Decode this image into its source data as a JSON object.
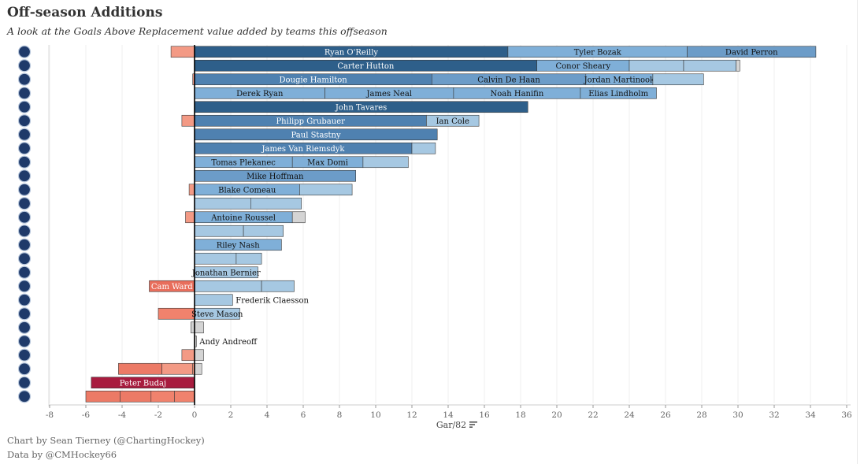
{
  "title": "Off-season Additions",
  "subtitle": "A look at the Goals Above Replacement value added by teams this offseason",
  "footer": {
    "credit": "Chart by Sean Tierney (@ChartingHockey)",
    "source": "Data by @CMHockey66"
  },
  "chart_data": {
    "type": "bar",
    "orientation": "horizontal-stacked",
    "xlabel": "Gar/82",
    "xlim": [
      -8,
      36
    ],
    "xticks": [
      -8,
      -6,
      -4,
      -2,
      0,
      2,
      4,
      6,
      8,
      10,
      12,
      14,
      16,
      18,
      20,
      22,
      24,
      26,
      28,
      30,
      32,
      34,
      36
    ],
    "grid": true,
    "colors": {
      "dark_blue": "#2e5f8a",
      "mid_blue": "#4f81b0",
      "light_blue": "#7fafd8",
      "pale_blue": "#a6c8e2",
      "gray": "#d4d4d4",
      "salmon": "#f39a85",
      "coral": "#e86e5c",
      "crimson": "#a81c3f"
    },
    "teams": [
      {
        "logo_icon": "st-louis-blues-logo-icon",
        "segments": [
          {
            "from": -1.3,
            "to": 0,
            "color": "#f39a85",
            "label": ""
          },
          {
            "from": 0,
            "to": 17.3,
            "color": "#2e5f8a",
            "label": "Ryan O'Reilly"
          },
          {
            "from": 17.3,
            "to": 27.2,
            "color": "#7fafd8",
            "label": "Tyler Bozak"
          },
          {
            "from": 27.2,
            "to": 34.3,
            "color": "#6c9cc8",
            "label": "David Perron"
          }
        ]
      },
      {
        "logo_icon": "buffalo-sabres-logo-icon",
        "segments": [
          {
            "from": 0,
            "to": 18.9,
            "color": "#2e5f8a",
            "label": "Carter Hutton"
          },
          {
            "from": 18.9,
            "to": 24.0,
            "color": "#7fafd8",
            "label": "Conor Sheary"
          },
          {
            "from": 24.0,
            "to": 27.0,
            "color": "#a6c8e2",
            "label": ""
          },
          {
            "from": 27.0,
            "to": 29.9,
            "color": "#a6c8e2",
            "label": ""
          },
          {
            "from": 29.9,
            "to": 30.1,
            "color": "#d4d4d4",
            "label": ""
          }
        ]
      },
      {
        "logo_icon": "carolina-hurricanes-logo-icon",
        "segments": [
          {
            "from": -0.1,
            "to": 0,
            "color": "#f39a85",
            "label": ""
          },
          {
            "from": 0,
            "to": 13.1,
            "color": "#4f81b0",
            "label": "Dougie Hamilton"
          },
          {
            "from": 13.1,
            "to": 21.6,
            "color": "#6c9cc8",
            "label": "Calvin De Haan"
          },
          {
            "from": 21.6,
            "to": 25.3,
            "color": "#7fafd8",
            "label": "Jordan Martinook"
          },
          {
            "from": 25.3,
            "to": 28.1,
            "color": "#a6c8e2",
            "label": ""
          }
        ]
      },
      {
        "logo_icon": "calgary-flames-logo-icon",
        "segments": [
          {
            "from": 0,
            "to": 7.2,
            "color": "#7fafd8",
            "label": "Derek Ryan"
          },
          {
            "from": 7.2,
            "to": 14.3,
            "color": "#7fafd8",
            "label": "James Neal"
          },
          {
            "from": 14.3,
            "to": 21.3,
            "color": "#7fafd8",
            "label": "Noah Hanifin"
          },
          {
            "from": 21.3,
            "to": 25.5,
            "color": "#7fafd8",
            "label": "Elias Lindholm"
          }
        ]
      },
      {
        "logo_icon": "toronto-maple-leafs-logo-icon",
        "segments": [
          {
            "from": 0,
            "to": 18.4,
            "color": "#2e5f8a",
            "label": "John Tavares"
          }
        ]
      },
      {
        "logo_icon": "colorado-avalanche-logo-icon",
        "segments": [
          {
            "from": -0.7,
            "to": 0,
            "color": "#f39a85",
            "label": ""
          },
          {
            "from": 0,
            "to": 12.8,
            "color": "#4f81b0",
            "label": "Philipp Grubauer"
          },
          {
            "from": 12.8,
            "to": 15.7,
            "color": "#a6c8e2",
            "label": "Ian Cole"
          }
        ]
      },
      {
        "logo_icon": "vegas-golden-knights-logo-icon",
        "segments": [
          {
            "from": 0,
            "to": 13.4,
            "color": "#4f81b0",
            "label": "Paul Stastny"
          }
        ]
      },
      {
        "logo_icon": "philadelphia-flyers-logo-icon",
        "segments": [
          {
            "from": 0,
            "to": 12.0,
            "color": "#4f81b0",
            "label": "James Van Riemsdyk"
          },
          {
            "from": 12.0,
            "to": 13.3,
            "color": "#a6c8e2",
            "label": ""
          }
        ]
      },
      {
        "logo_icon": "montreal-canadiens-logo-icon",
        "segments": [
          {
            "from": 0,
            "to": 5.4,
            "color": "#7fafd8",
            "label": "Tomas Plekanec"
          },
          {
            "from": 5.4,
            "to": 9.3,
            "color": "#7fafd8",
            "label": "Max Domi"
          },
          {
            "from": 9.3,
            "to": 11.8,
            "color": "#a6c8e2",
            "label": ""
          }
        ]
      },
      {
        "logo_icon": "florida-panthers-logo-icon",
        "segments": [
          {
            "from": 0,
            "to": 8.9,
            "color": "#6c9cc8",
            "label": "Mike Hoffman"
          }
        ]
      },
      {
        "logo_icon": "dallas-stars-logo-icon",
        "segments": [
          {
            "from": -0.3,
            "to": 0,
            "color": "#f39a85",
            "label": ""
          },
          {
            "from": 0,
            "to": 5.8,
            "color": "#7fafd8",
            "label": "Blake Comeau"
          },
          {
            "from": 5.8,
            "to": 8.7,
            "color": "#a6c8e2",
            "label": ""
          }
        ]
      },
      {
        "logo_icon": "arizona-coyotes-logo-icon",
        "segments": [
          {
            "from": 0,
            "to": 3.1,
            "color": "#a6c8e2",
            "label": ""
          },
          {
            "from": 3.1,
            "to": 5.9,
            "color": "#a6c8e2",
            "label": ""
          }
        ]
      },
      {
        "logo_icon": "vancouver-canucks-logo-icon",
        "segments": [
          {
            "from": -0.5,
            "to": 0,
            "color": "#f39a85",
            "label": ""
          },
          {
            "from": 0,
            "to": 5.4,
            "color": "#7fafd8",
            "label": "Antoine Roussel"
          },
          {
            "from": 5.4,
            "to": 6.1,
            "color": "#d4d4d4",
            "label": ""
          }
        ]
      },
      {
        "logo_icon": "edmonton-oilers-logo-icon",
        "segments": [
          {
            "from": 0,
            "to": 2.7,
            "color": "#a6c8e2",
            "label": ""
          },
          {
            "from": 2.7,
            "to": 4.9,
            "color": "#a6c8e2",
            "label": ""
          }
        ]
      },
      {
        "logo_icon": "columbus-blue-jackets-logo-icon",
        "segments": [
          {
            "from": 0,
            "to": 4.8,
            "color": "#7fafd8",
            "label": "Riley Nash"
          }
        ]
      },
      {
        "logo_icon": "minnesota-wild-logo-icon",
        "segments": [
          {
            "from": 0,
            "to": 2.3,
            "color": "#a6c8e2",
            "label": ""
          },
          {
            "from": 2.3,
            "to": 3.7,
            "color": "#a6c8e2",
            "label": ""
          }
        ]
      },
      {
        "logo_icon": "detroit-red-wings-logo-icon",
        "segments": [
          {
            "from": 0,
            "to": 3.5,
            "color": "#a6c8e2",
            "label": "Jonathan Bernier"
          }
        ]
      },
      {
        "logo_icon": "chicago-blackhawks-logo-icon",
        "segments": [
          {
            "from": -2.5,
            "to": 0,
            "color": "#e86e5c",
            "label": "Cam Ward"
          },
          {
            "from": 0,
            "to": 3.7,
            "color": "#a6c8e2",
            "label": ""
          },
          {
            "from": 3.7,
            "to": 5.5,
            "color": "#a6c8e2",
            "label": ""
          }
        ]
      },
      {
        "logo_icon": "new-york-rangers-logo-icon",
        "segments": [
          {
            "from": 0,
            "to": 2.1,
            "color": "#a6c8e2",
            "label": "",
            "outside_label": "Frederik Claesson"
          }
        ]
      },
      {
        "logo_icon": "pittsburgh-penguins-logo-icon",
        "segments": [
          {
            "from": -2.0,
            "to": 0,
            "color": "#f0826d",
            "label": ""
          },
          {
            "from": 0,
            "to": 2.5,
            "color": "#a6c8e2",
            "label": "Steve Mason"
          }
        ]
      },
      {
        "logo_icon": "pittsburgh-penguins-alt-logo-icon",
        "segments": [
          {
            "from": -0.2,
            "to": 0,
            "color": "#d4d4d4",
            "label": ""
          },
          {
            "from": 0,
            "to": 0.5,
            "color": "#d4d4d4",
            "label": ""
          }
        ]
      },
      {
        "logo_icon": "tampa-bay-lightning-logo-icon",
        "segments": [
          {
            "from": 0,
            "to": 0.1,
            "color": "#d4d4d4",
            "label": "",
            "outside_label": "Andy Andreoff"
          }
        ]
      },
      {
        "logo_icon": "anaheim-ducks-logo-icon",
        "segments": [
          {
            "from": -0.7,
            "to": 0,
            "color": "#f39a85",
            "label": ""
          },
          {
            "from": 0,
            "to": 0.5,
            "color": "#d4d4d4",
            "label": ""
          }
        ]
      },
      {
        "logo_icon": "boston-bruins-logo-icon",
        "segments": [
          {
            "from": -4.2,
            "to": -1.8,
            "color": "#ec7a66",
            "label": ""
          },
          {
            "from": -1.8,
            "to": -0.1,
            "color": "#f39a85",
            "label": ""
          },
          {
            "from": -0.1,
            "to": 0,
            "color": "#f39a85",
            "label": ""
          },
          {
            "from": 0,
            "to": 0.4,
            "color": "#d4d4d4",
            "label": ""
          }
        ]
      },
      {
        "logo_icon": "los-angeles-kings-logo-icon",
        "segments": [
          {
            "from": -5.7,
            "to": 0,
            "color": "#a81c3f",
            "label": "Peter Budaj"
          }
        ]
      },
      {
        "logo_icon": "new-york-islanders-logo-icon",
        "segments": [
          {
            "from": -6.0,
            "to": -4.1,
            "color": "#ec7a66",
            "label": ""
          },
          {
            "from": -4.1,
            "to": -2.4,
            "color": "#ec7a66",
            "label": ""
          },
          {
            "from": -2.4,
            "to": -1.1,
            "color": "#f0826d",
            "label": ""
          },
          {
            "from": -1.1,
            "to": 0,
            "color": "#f0826d",
            "label": ""
          }
        ]
      }
    ]
  }
}
